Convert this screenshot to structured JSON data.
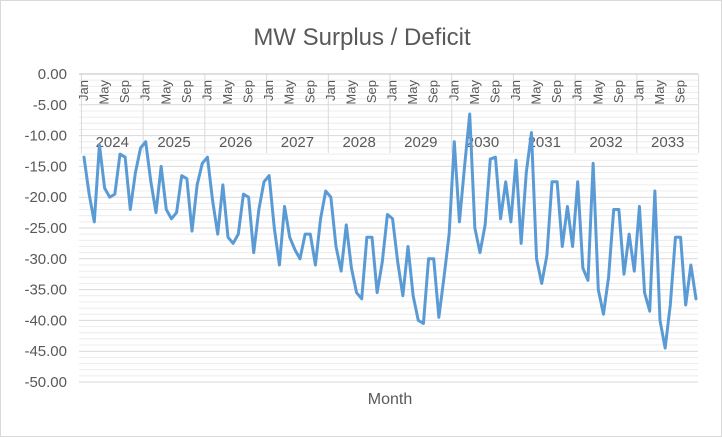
{
  "chart_data": {
    "type": "line",
    "title": "MW Surplus / Deficit",
    "xlabel": "Month",
    "ylabel": "",
    "ylim": [
      -50,
      0
    ],
    "y_ticks": [
      "0.00",
      "-5.00",
      "-10.00",
      "-15.00",
      "-20.00",
      "-25.00",
      "-30.00",
      "-35.00",
      "-40.00",
      "-45.00",
      "-50.00"
    ],
    "y_tick_values": [
      0,
      -5,
      -10,
      -15,
      -20,
      -25,
      -30,
      -35,
      -40,
      -45,
      -50
    ],
    "grid": true,
    "legend": "none",
    "line_color": "#5b9bd5",
    "month_tick_labels": [
      "Jan",
      "May",
      "Sep"
    ],
    "years": [
      "2024",
      "2025",
      "2026",
      "2027",
      "2028",
      "2029",
      "2030",
      "2031",
      "2032",
      "2033"
    ],
    "series": [
      {
        "values": [
          -13.5,
          -19.5,
          -24,
          -11.5,
          -18.5,
          -20,
          -19.5,
          -13,
          -13.5,
          -22,
          -16,
          -12,
          -11,
          -17.5,
          -22.5,
          -15,
          -22,
          -23.5,
          -22.5,
          -16.5,
          -17,
          -25.5,
          -18,
          -14.5,
          -13.5,
          -20.5,
          -26,
          -18,
          -26.5,
          -27.5,
          -26,
          -19.5,
          -20,
          -29,
          -22,
          -17.5,
          -16.5,
          -25,
          -31,
          -21.5,
          -26.5,
          -28.5,
          -30,
          -26,
          -26,
          -31,
          -23.5,
          -19,
          -20,
          -28,
          -32,
          -24.5,
          -31.5,
          -35.5,
          -36.5,
          -26.5,
          -26.5,
          -35.5,
          -30.5,
          -22.8,
          -23.5,
          -30.5,
          -36,
          -28,
          -36,
          -40,
          -40.5,
          -30,
          -30,
          -39.5,
          -33,
          -26,
          -11,
          -24,
          -15,
          -6.5,
          -25,
          -29,
          -24.5,
          -13.8,
          -13.5,
          -23.5,
          -17.5,
          -24,
          -14,
          -27.5,
          -16,
          -9.5,
          -30,
          -34,
          -29.5,
          -17.5,
          -17.5,
          -28,
          -21.5,
          -28,
          -17.5,
          -31.5,
          -33.5,
          -14.5,
          -35,
          -39,
          -33,
          -22,
          -22,
          -32.5,
          -26,
          -32,
          -21.5,
          -35.5,
          -38.5,
          -19,
          -40,
          -44.5,
          -37.5,
          -26.5,
          -26.5,
          -37.5,
          -31,
          -36.5
        ]
      }
    ]
  }
}
